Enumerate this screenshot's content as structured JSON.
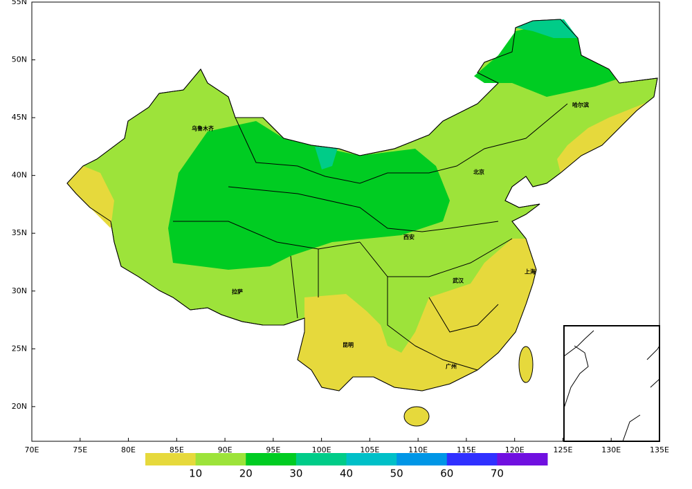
{
  "map": {
    "xlim": [
      70,
      135
    ],
    "ylim": [
      17,
      55
    ],
    "xticks": [
      {
        "value": 70,
        "label": "70E"
      },
      {
        "value": 75,
        "label": "75E"
      },
      {
        "value": 80,
        "label": "80E"
      },
      {
        "value": 85,
        "label": "85E"
      },
      {
        "value": 90,
        "label": "90E"
      },
      {
        "value": 95,
        "label": "95E"
      },
      {
        "value": 100,
        "label": "100E"
      },
      {
        "value": 105,
        "label": "105E"
      },
      {
        "value": 110,
        "label": "110E"
      },
      {
        "value": 115,
        "label": "115E"
      },
      {
        "value": 120,
        "label": "120E"
      },
      {
        "value": 125,
        "label": "125E"
      },
      {
        "value": 130,
        "label": "130E"
      },
      {
        "value": 135,
        "label": "135E"
      }
    ],
    "yticks": [
      {
        "value": 20,
        "label": "20N"
      },
      {
        "value": 25,
        "label": "25N"
      },
      {
        "value": 30,
        "label": "30N"
      },
      {
        "value": 35,
        "label": "35N"
      },
      {
        "value": 40,
        "label": "40N"
      },
      {
        "value": 45,
        "label": "45N"
      },
      {
        "value": 50,
        "label": "50N"
      },
      {
        "value": 55,
        "label": "55N"
      }
    ],
    "cities": [
      "乌鲁木齐",
      "拉萨",
      "昆明",
      "广州",
      "西安",
      "武汉",
      "北京",
      "哈尔滨",
      "上海"
    ]
  },
  "colorbar": {
    "levels": [
      10,
      20,
      30,
      40,
      50,
      60,
      70
    ],
    "colors": [
      "#e6d93c",
      "#9de33a",
      "#00cc22",
      "#00cc88",
      "#00c0c8",
      "#0096e6",
      "#3030ff",
      "#7010e0"
    ]
  }
}
